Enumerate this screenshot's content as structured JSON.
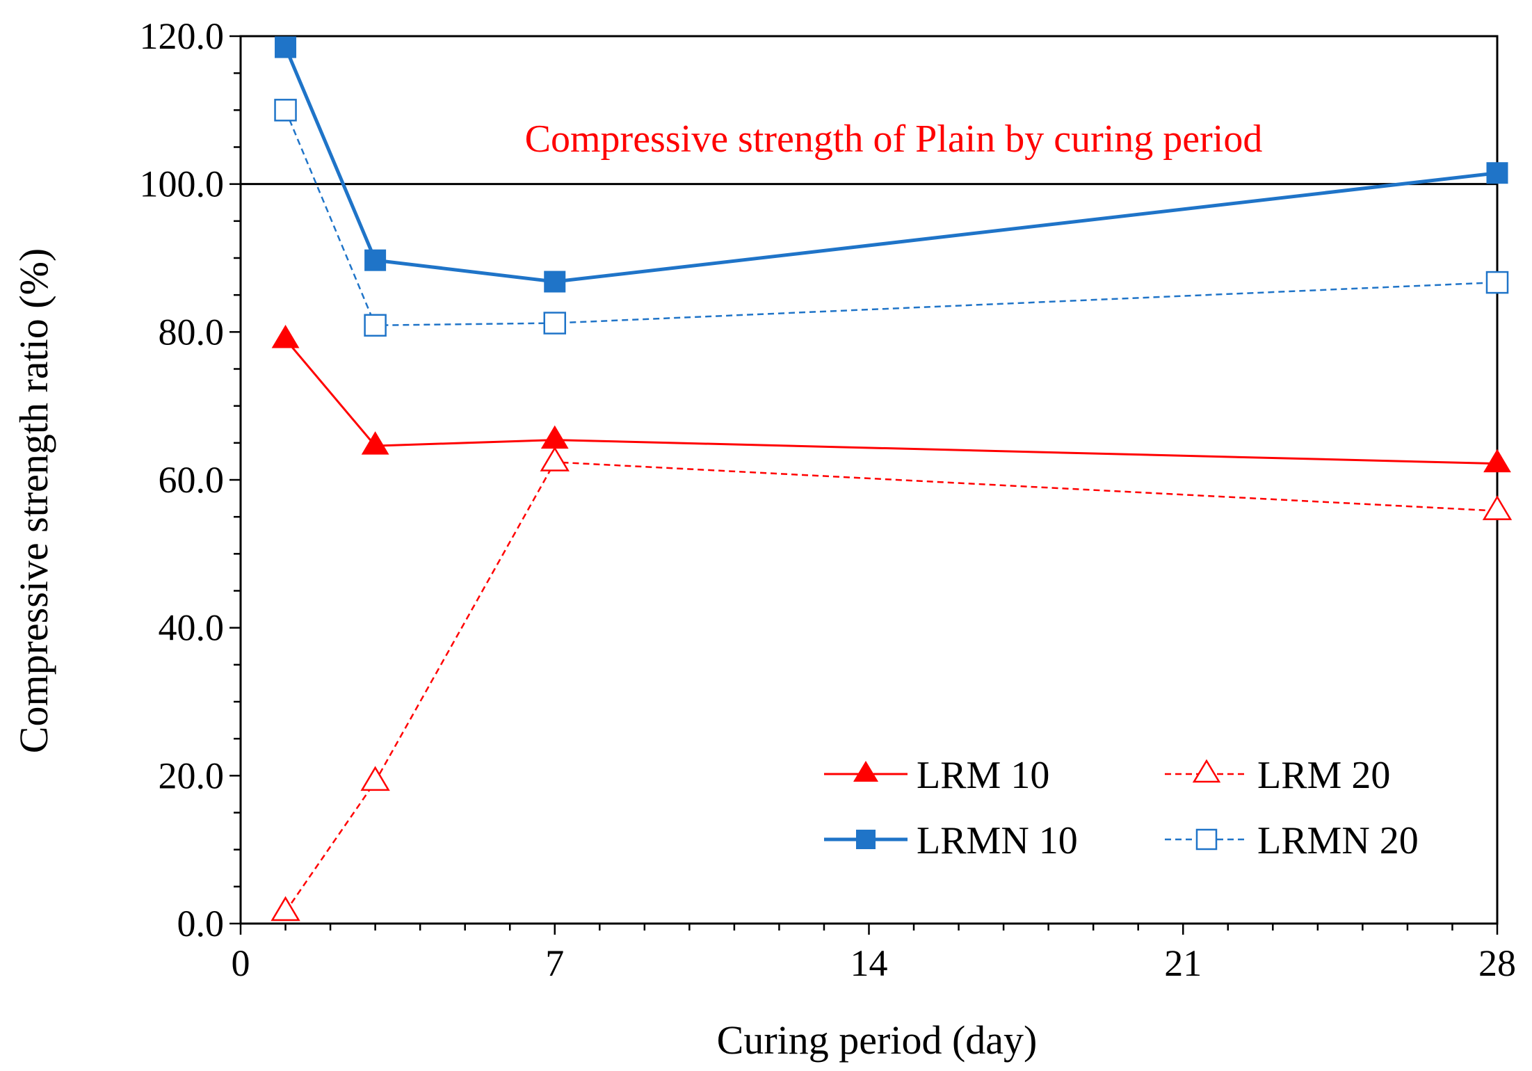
{
  "chart_data": {
    "type": "line",
    "title": "",
    "xlabel": "Curing period (day)",
    "ylabel": "Compressive strength ratio (%)",
    "xlim": [
      0,
      28
    ],
    "ylim": [
      0,
      120
    ],
    "x_ticks": [
      0,
      7,
      14,
      21,
      28
    ],
    "x_tick_labels": [
      "0",
      "7",
      "14",
      "21",
      "28"
    ],
    "y_ticks": [
      0,
      20,
      40,
      60,
      80,
      100,
      120
    ],
    "y_tick_labels": [
      "0.0",
      "20.0",
      "40.0",
      "60.0",
      "80.0",
      "100.0",
      "120.0"
    ],
    "reference_line": {
      "y": 100,
      "label": "Compressive strength of Plain by curing period",
      "color": "#ff0000"
    },
    "series": [
      {
        "name": "LRM 10",
        "x": [
          1,
          3,
          7,
          28
        ],
        "y": [
          79.0,
          64.6,
          65.4,
          62.2
        ],
        "color": "#ff0000",
        "marker": "filled-triangle",
        "line": "solid"
      },
      {
        "name": "LRM 20",
        "x": [
          1,
          3,
          7,
          28
        ],
        "y": [
          1.6,
          19.2,
          62.4,
          55.8
        ],
        "color": "#ff0000",
        "marker": "open-triangle",
        "line": "dashed"
      },
      {
        "name": "LRMN 10",
        "x": [
          1,
          3,
          7,
          28
        ],
        "y": [
          118.5,
          89.7,
          86.8,
          101.5
        ],
        "color": "#1f74c8",
        "marker": "filled-square",
        "line": "solid"
      },
      {
        "name": "LRMN 20",
        "x": [
          1,
          3,
          7,
          28
        ],
        "y": [
          110.0,
          80.9,
          81.2,
          86.7
        ],
        "color": "#1f74c8",
        "marker": "open-square",
        "line": "dashed"
      }
    ],
    "legend_position": "bottom-right"
  }
}
